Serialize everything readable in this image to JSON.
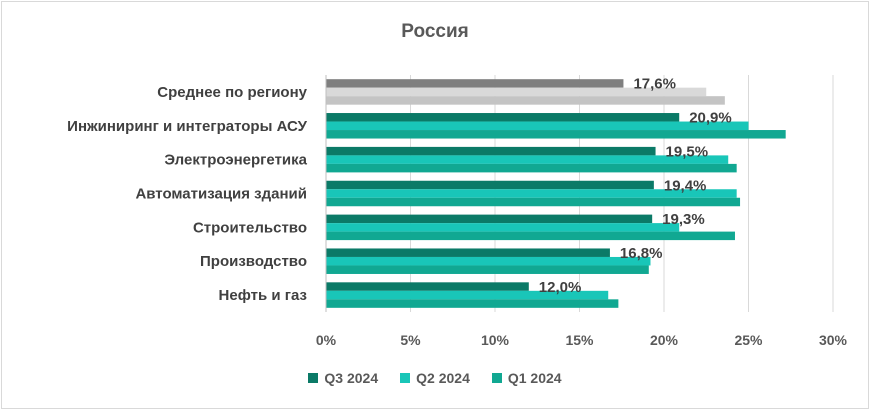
{
  "chart_data": {
    "type": "bar",
    "orientation": "horizontal",
    "title": "Россия",
    "categories": [
      "Среднее по региону",
      "Инжиниринг и интеграторы АСУ",
      "Электроэнергетика",
      "Автоматизация зданий",
      "Строительство",
      "Производство",
      "Нефть и газ"
    ],
    "series": [
      {
        "name": "Q3 2024",
        "values": [
          17.6,
          20.9,
          19.5,
          19.4,
          19.3,
          16.8,
          12.0
        ]
      },
      {
        "name": "Q2 2024",
        "values": [
          22.5,
          25.0,
          23.8,
          24.3,
          20.9,
          19.2,
          16.7
        ]
      },
      {
        "name": "Q1 2024",
        "values": [
          23.6,
          27.2,
          24.3,
          24.5,
          24.2,
          19.1,
          17.3
        ]
      }
    ],
    "data_labels": [
      "17,6%",
      "20,9%",
      "19,5%",
      "19,4%",
      "19,3%",
      "16,8%",
      "12,0%"
    ],
    "xlim": [
      0,
      30
    ],
    "x_ticks": [
      "0%",
      "5%",
      "10%",
      "15%",
      "20%",
      "25%",
      "30%"
    ],
    "grid": true,
    "legend_position": "bottom",
    "colors": {
      "q3": "#0b7a67",
      "q2": "#19c6b8",
      "q1": "#11a892",
      "avg_q3": "#7f7f7f",
      "avg_q2": "#d9d9d9",
      "avg_q1": "#c4c4c4",
      "grid": "#d9d9d9"
    }
  }
}
